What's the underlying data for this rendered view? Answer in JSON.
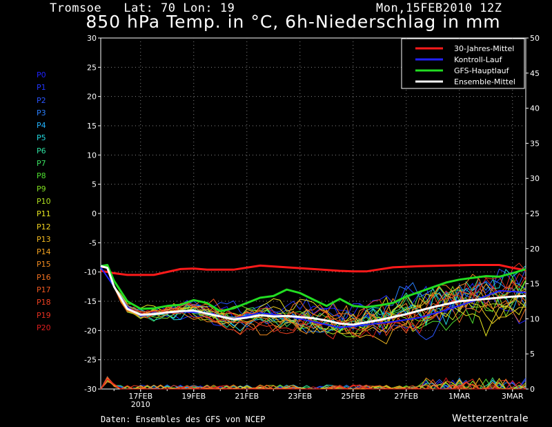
{
  "header": {
    "location": "Tromsoe   Lat: 70 Lon: 19",
    "date": "Mon,15FEB2010 12Z"
  },
  "title": "850 hPa Temp. in °C, 6h-Niederschlag in mm",
  "footer": {
    "source": "Daten: Ensembles des GFS von NCEP",
    "brand": "Wetterzentrale"
  },
  "members": [
    {
      "label": "P0",
      "color": "#1e22ff"
    },
    {
      "label": "P1",
      "color": "#2236ff"
    },
    {
      "label": "P2",
      "color": "#2a55ff"
    },
    {
      "label": "P3",
      "color": "#2a80ff"
    },
    {
      "label": "P4",
      "color": "#22b4ff"
    },
    {
      "label": "P5",
      "color": "#22d8e0"
    },
    {
      "label": "P6",
      "color": "#2ee0a0"
    },
    {
      "label": "P7",
      "color": "#3ae060"
    },
    {
      "label": "P8",
      "color": "#4ee030"
    },
    {
      "label": "P9",
      "color": "#80e020"
    },
    {
      "label": "P10",
      "color": "#b0e020"
    },
    {
      "label": "P11",
      "color": "#e6e620"
    },
    {
      "label": "P12",
      "color": "#f0d020"
    },
    {
      "label": "P13",
      "color": "#f0b820"
    },
    {
      "label": "P14",
      "color": "#f0a020"
    },
    {
      "label": "P15",
      "color": "#f08a20"
    },
    {
      "label": "P16",
      "color": "#f07020"
    },
    {
      "label": "P17",
      "color": "#f05820"
    },
    {
      "label": "P18",
      "color": "#f04020"
    },
    {
      "label": "P19",
      "color": "#e83020"
    },
    {
      "label": "P20",
      "color": "#e01e1e"
    }
  ],
  "legend": [
    {
      "label": "30-Jahres-Mittel",
      "color": "#ff1a1a"
    },
    {
      "label": "Kontroll-Lauf",
      "color": "#2222ff"
    },
    {
      "label": "GFS-Hauptlauf",
      "color": "#22dd22"
    },
    {
      "label": "Ensemble-Mittel",
      "color": "#ffffff"
    }
  ],
  "chart_data": {
    "type": "line",
    "y_left": {
      "min": -30,
      "max": 30,
      "ticks": [
        30,
        25,
        20,
        15,
        10,
        5,
        0,
        -5,
        -10,
        -15,
        -20,
        -25,
        -30
      ]
    },
    "y_right": {
      "min": 0,
      "max": 50,
      "ticks": [
        50,
        45,
        40,
        35,
        30,
        25,
        20,
        15,
        10,
        5,
        0
      ]
    },
    "x": {
      "min_day": 0,
      "max_day": 16,
      "ticks": [
        {
          "day": 1.5,
          "label": "17FEB",
          "sub": "2010"
        },
        {
          "day": 3.5,
          "label": "19FEB"
        },
        {
          "day": 5.5,
          "label": "21FEB"
        },
        {
          "day": 7.5,
          "label": "23FEB"
        },
        {
          "day": 9.5,
          "label": "25FEB"
        },
        {
          "day": 11.5,
          "label": "27FEB"
        },
        {
          "day": 13.5,
          "label": "1MAR"
        },
        {
          "day": 15.5,
          "label": "3MAR"
        }
      ]
    },
    "grid": true,
    "legend_position": "top-right",
    "series": [
      {
        "name": "30-Jahres-Mittel",
        "color": "#ff1a1a",
        "width": 3,
        "days": [
          0,
          0.5,
          1,
          2,
          3,
          3.5,
          4,
          5,
          6,
          7,
          8,
          9,
          9.5,
          10,
          11,
          12,
          13,
          14,
          15,
          15.5,
          16
        ],
        "values": [
          -9.8,
          -10.2,
          -10.5,
          -10.5,
          -9.5,
          -9.4,
          -9.6,
          -9.6,
          -8.9,
          -9.2,
          -9.5,
          -9.8,
          -9.9,
          -9.9,
          -9.2,
          -9.0,
          -8.9,
          -8.8,
          -8.8,
          -9.3,
          -9.7
        ]
      },
      {
        "name": "GFS-Hauptlauf",
        "color": "#22dd22",
        "width": 3,
        "days": [
          0,
          0.25,
          0.5,
          1,
          1.5,
          2,
          2.5,
          3,
          3.5,
          4,
          4.5,
          5,
          5.5,
          6,
          6.5,
          7,
          7.5,
          8,
          8.5,
          9,
          9.5,
          10,
          10.5,
          11,
          11.5,
          12,
          12.5,
          13,
          13.5,
          14,
          14.5,
          15,
          15.5,
          16
        ],
        "values": [
          -9.0,
          -8.8,
          -11.5,
          -15.0,
          -16.3,
          -16.2,
          -15.8,
          -15.6,
          -14.8,
          -15.3,
          -16.7,
          -16.2,
          -15.3,
          -14.4,
          -14.1,
          -13.0,
          -13.6,
          -14.7,
          -15.8,
          -14.6,
          -15.8,
          -16.0,
          -15.7,
          -15.3,
          -14.2,
          -13.4,
          -12.6,
          -11.8,
          -11.3,
          -11.0,
          -10.7,
          -10.8,
          -10.2,
          -9.5
        ]
      },
      {
        "name": "Kontroll-Lauf",
        "color": "#2222ff",
        "width": 2,
        "days": [
          0,
          0.5,
          1,
          1.5,
          2,
          3,
          4,
          5,
          6,
          7,
          8,
          9,
          10,
          11,
          12,
          13,
          14,
          15,
          16
        ],
        "values": [
          -9.2,
          -12.5,
          -16.0,
          -17.5,
          -17.2,
          -16.8,
          -17.0,
          -18.0,
          -17.0,
          -17.5,
          -18.5,
          -19.5,
          -19.0,
          -18.5,
          -17.8,
          -16.5,
          -15.0,
          -13.2,
          -13.5
        ]
      },
      {
        "name": "Ensemble-Mittel",
        "color": "#ffffff",
        "width": 3,
        "days": [
          0,
          0.25,
          0.5,
          1,
          1.5,
          2,
          2.5,
          3,
          3.5,
          4,
          4.5,
          5,
          5.5,
          6,
          6.5,
          7,
          7.5,
          8,
          8.5,
          9,
          9.5,
          10,
          10.5,
          11,
          11.5,
          12,
          12.5,
          13,
          13.5,
          14,
          14.5,
          15,
          15.5,
          16
        ],
        "values": [
          -9.0,
          -9.3,
          -12.5,
          -16.3,
          -17.3,
          -17.2,
          -16.9,
          -16.7,
          -16.6,
          -17.1,
          -17.6,
          -18.1,
          -17.8,
          -17.4,
          -17.6,
          -17.5,
          -17.7,
          -17.9,
          -18.3,
          -18.8,
          -19.0,
          -18.6,
          -18.2,
          -17.7,
          -17.2,
          -16.6,
          -16.0,
          -15.5,
          -15.0,
          -14.8,
          -14.6,
          -14.4,
          -14.2,
          -14.1
        ]
      }
    ],
    "precip_series": {
      "note": "thin lines near 0 mm, right axis",
      "peak_day": 0.3,
      "peak_mm": 1.8
    }
  }
}
